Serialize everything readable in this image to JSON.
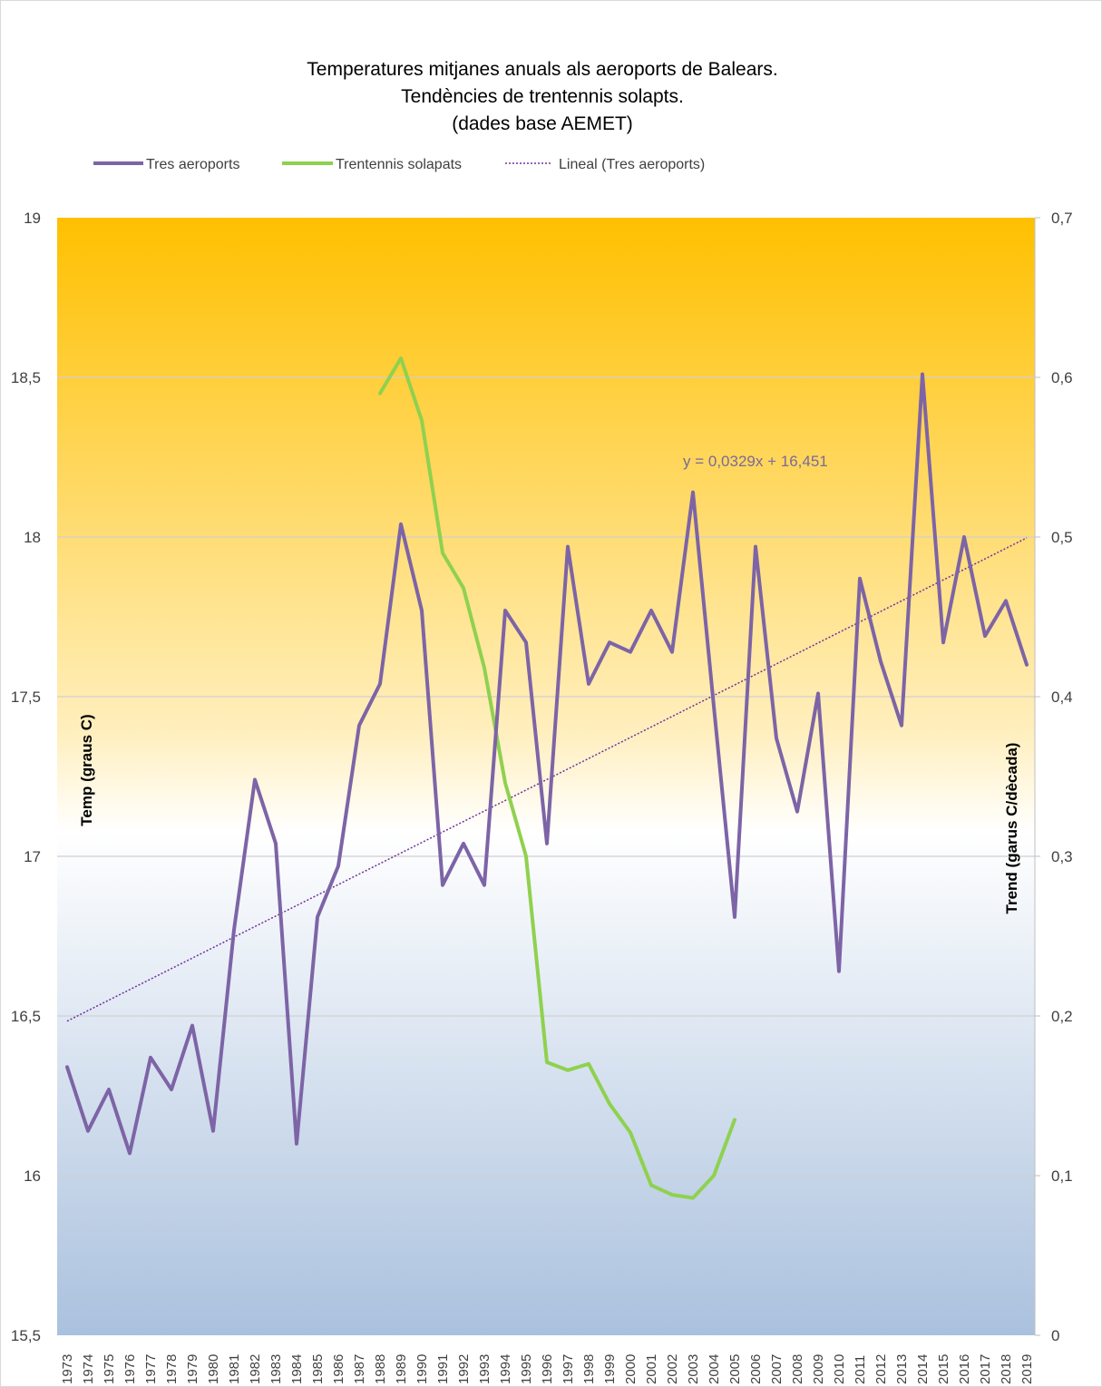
{
  "chart_data": {
    "type": "line",
    "title": [
      "Temperatures mitjanes anuals als aeroports de Balears.",
      "Tendències de trentennis solapts.",
      "(dades base AEMET)"
    ],
    "ylabel": "Temp (graus C)",
    "y2label": "Trend (garus C/dècada)",
    "ylim": [
      15.5,
      19
    ],
    "y2lim": [
      0,
      0.7
    ],
    "yticks": [
      "15,5",
      "16",
      "16,5",
      "17",
      "17,5",
      "18",
      "18,5",
      "19"
    ],
    "y2ticks": [
      "0",
      "0,1",
      "0,2",
      "0,3",
      "0,4",
      "0,5",
      "0,6",
      "0,7"
    ],
    "x": [
      "1973",
      "1974",
      "1975",
      "1976",
      "1977",
      "1978",
      "1979",
      "1980",
      "1981",
      "1982",
      "1983",
      "1984",
      "1985",
      "1986",
      "1987",
      "1988",
      "1989",
      "1990",
      "1991",
      "1992",
      "1993",
      "1994",
      "1995",
      "1996",
      "1997",
      "1998",
      "1999",
      "2000",
      "2001",
      "2002",
      "2003",
      "2004",
      "2005",
      "2006",
      "2007",
      "2008",
      "2009",
      "2010",
      "2011",
      "2012",
      "2013",
      "2014",
      "2015",
      "2016",
      "2017",
      "2018",
      "2019"
    ],
    "grid": true,
    "legend_position": "top-left",
    "background": "vertical gradient orange (top) to white (middle) to light blue (bottom)",
    "series": [
      {
        "name": "Tres aeroports",
        "axis": "left",
        "color": "#7d64a6",
        "style": "solid",
        "values": [
          16.34,
          16.14,
          16.27,
          16.07,
          16.37,
          16.27,
          16.47,
          16.14,
          16.77,
          17.24,
          17.04,
          16.1,
          16.81,
          16.97,
          17.41,
          17.54,
          18.04,
          17.77,
          16.91,
          17.04,
          16.91,
          17.77,
          17.67,
          17.04,
          17.97,
          17.54,
          17.67,
          17.64,
          17.77,
          17.64,
          18.14,
          17.47,
          16.81,
          17.97,
          17.37,
          17.14,
          17.51,
          16.64,
          17.87,
          17.61,
          17.41,
          18.51,
          17.67,
          18.0,
          17.69,
          17.8,
          17.6
        ]
      },
      {
        "name": "Trentennis solapats",
        "axis": "right",
        "color": "#8fd14f",
        "style": "solid",
        "values": [
          null,
          null,
          null,
          null,
          null,
          null,
          null,
          null,
          null,
          null,
          null,
          null,
          null,
          null,
          null,
          0.59,
          0.612,
          0.573,
          0.49,
          0.468,
          0.418,
          0.346,
          0.3,
          0.171,
          0.166,
          0.17,
          0.145,
          0.127,
          0.094,
          0.088,
          0.086,
          0.1,
          0.135,
          null,
          null,
          null,
          null,
          null,
          null,
          null,
          null,
          null,
          null,
          null,
          null,
          null,
          null
        ]
      },
      {
        "name": "Lineal  (Tres aeroports)",
        "axis": "left",
        "color": "#7030a0",
        "style": "dotted",
        "trend": {
          "slope": 0.0329,
          "intercept": 16.451
        }
      }
    ],
    "annotations": [
      {
        "text": "y = 0,0329x + 16,451"
      }
    ]
  }
}
